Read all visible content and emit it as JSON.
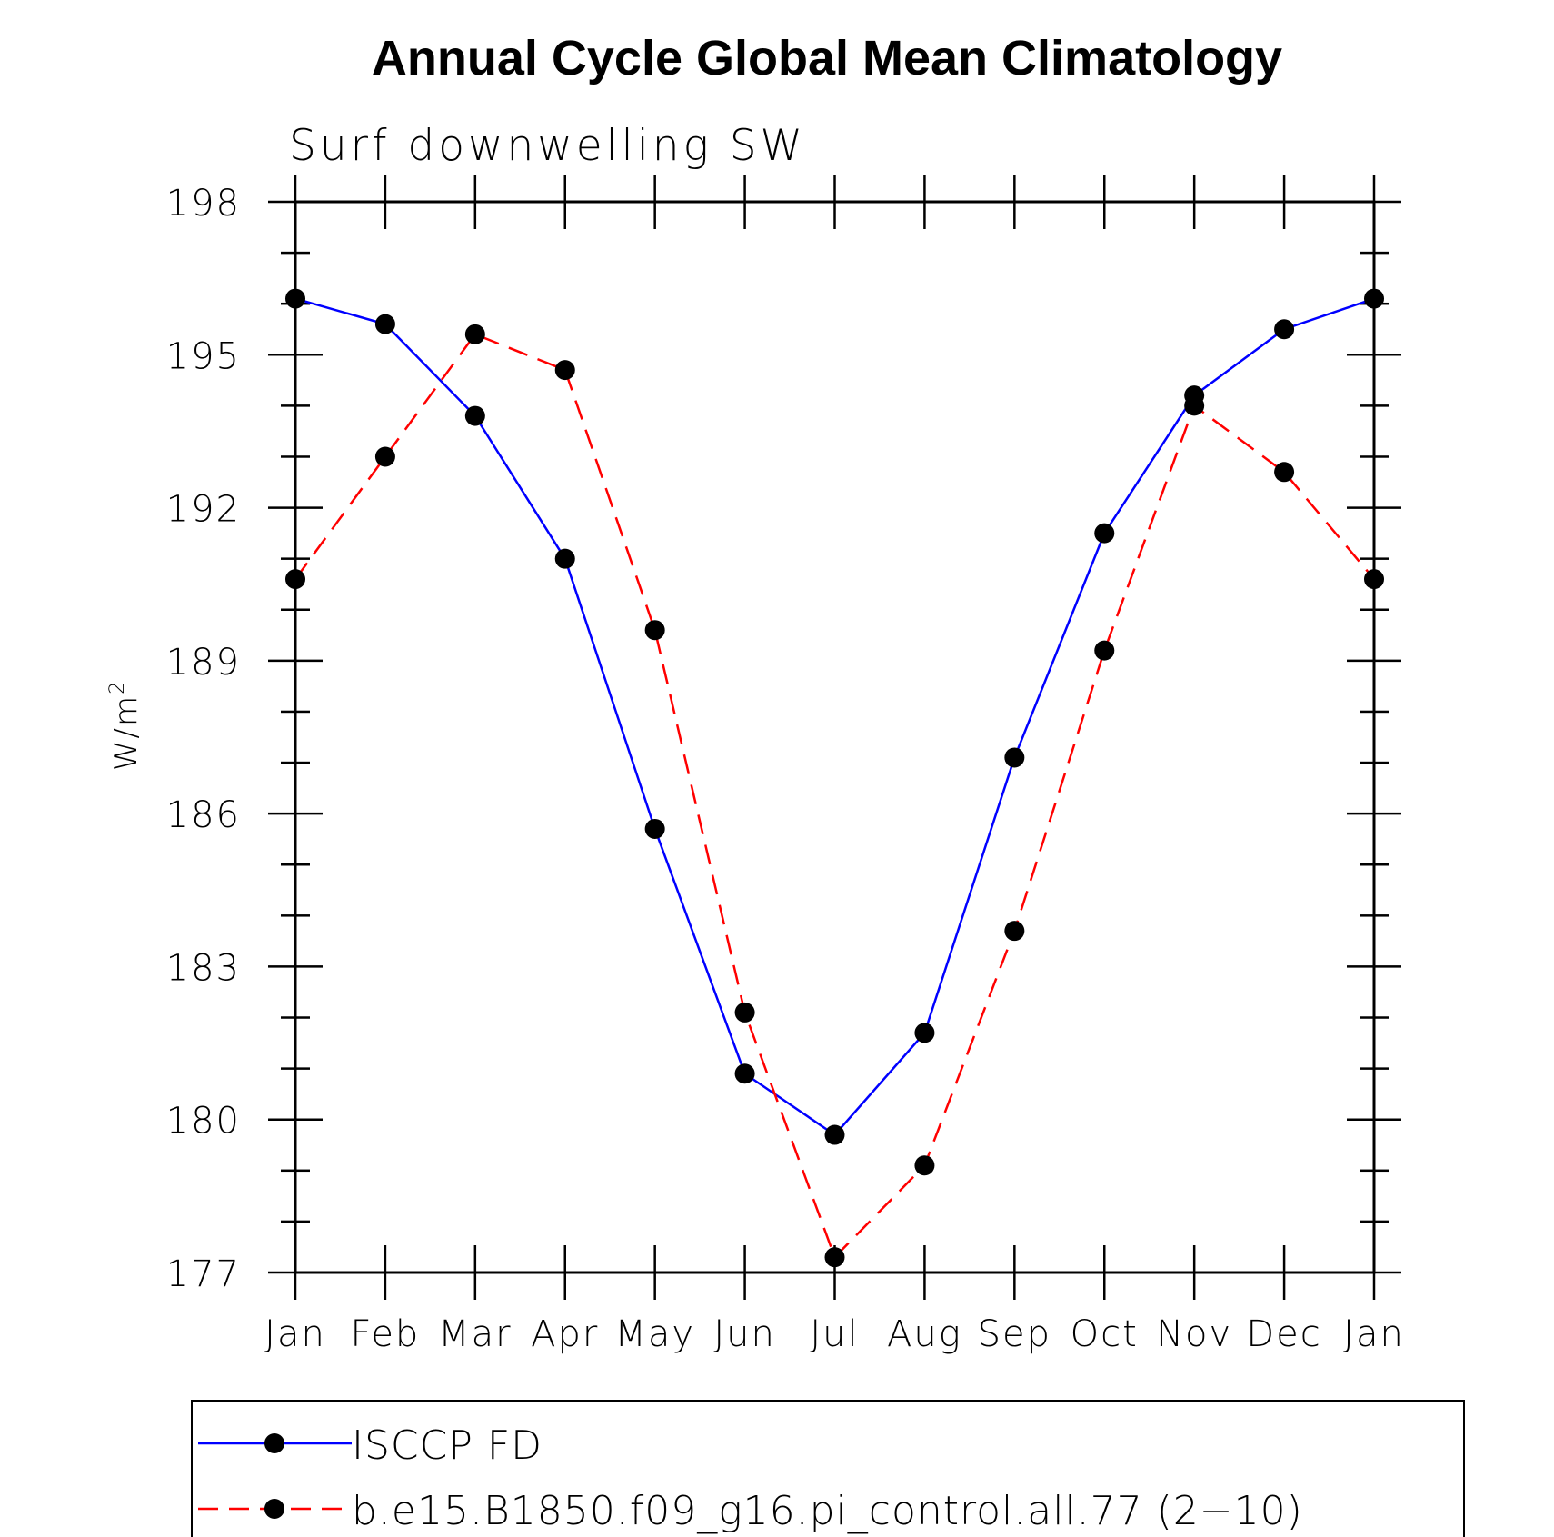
{
  "chart_data": {
    "type": "line",
    "title": "Annual Cycle Global Mean Climatology",
    "subtitle": "Surf downwelling SW",
    "ylabel": "W/m",
    "ylabel_sup": "2",
    "xlabel": "",
    "categories": [
      "Jan",
      "Feb",
      "Mar",
      "Apr",
      "May",
      "Jun",
      "Jul",
      "Aug",
      "Sep",
      "Oct",
      "Nov",
      "Dec",
      "Jan"
    ],
    "ylim": [
      177,
      198
    ],
    "yticks": [
      "198",
      "195",
      "192",
      "189",
      "186",
      "183",
      "180",
      "177"
    ],
    "grid": false,
    "legend_position": "bottom",
    "series": [
      {
        "name": "ISCCP FD",
        "color": "#0000ff",
        "dash": "solid",
        "marker": "filled-circle",
        "values": [
          196.1,
          195.6,
          193.8,
          191.0,
          185.7,
          180.9,
          179.7,
          181.7,
          187.1,
          191.5,
          194.2,
          195.5,
          196.1
        ]
      },
      {
        "name": "b.e15.B1850.f09_g16.pi_control.all.77 (2−10)",
        "color": "#ff0000",
        "dash": "dashed",
        "marker": "filled-circle",
        "values": [
          190.6,
          193.0,
          195.4,
          194.7,
          189.6,
          182.1,
          177.3,
          179.1,
          183.7,
          189.2,
          194.0,
          192.7,
          190.6
        ]
      }
    ]
  }
}
